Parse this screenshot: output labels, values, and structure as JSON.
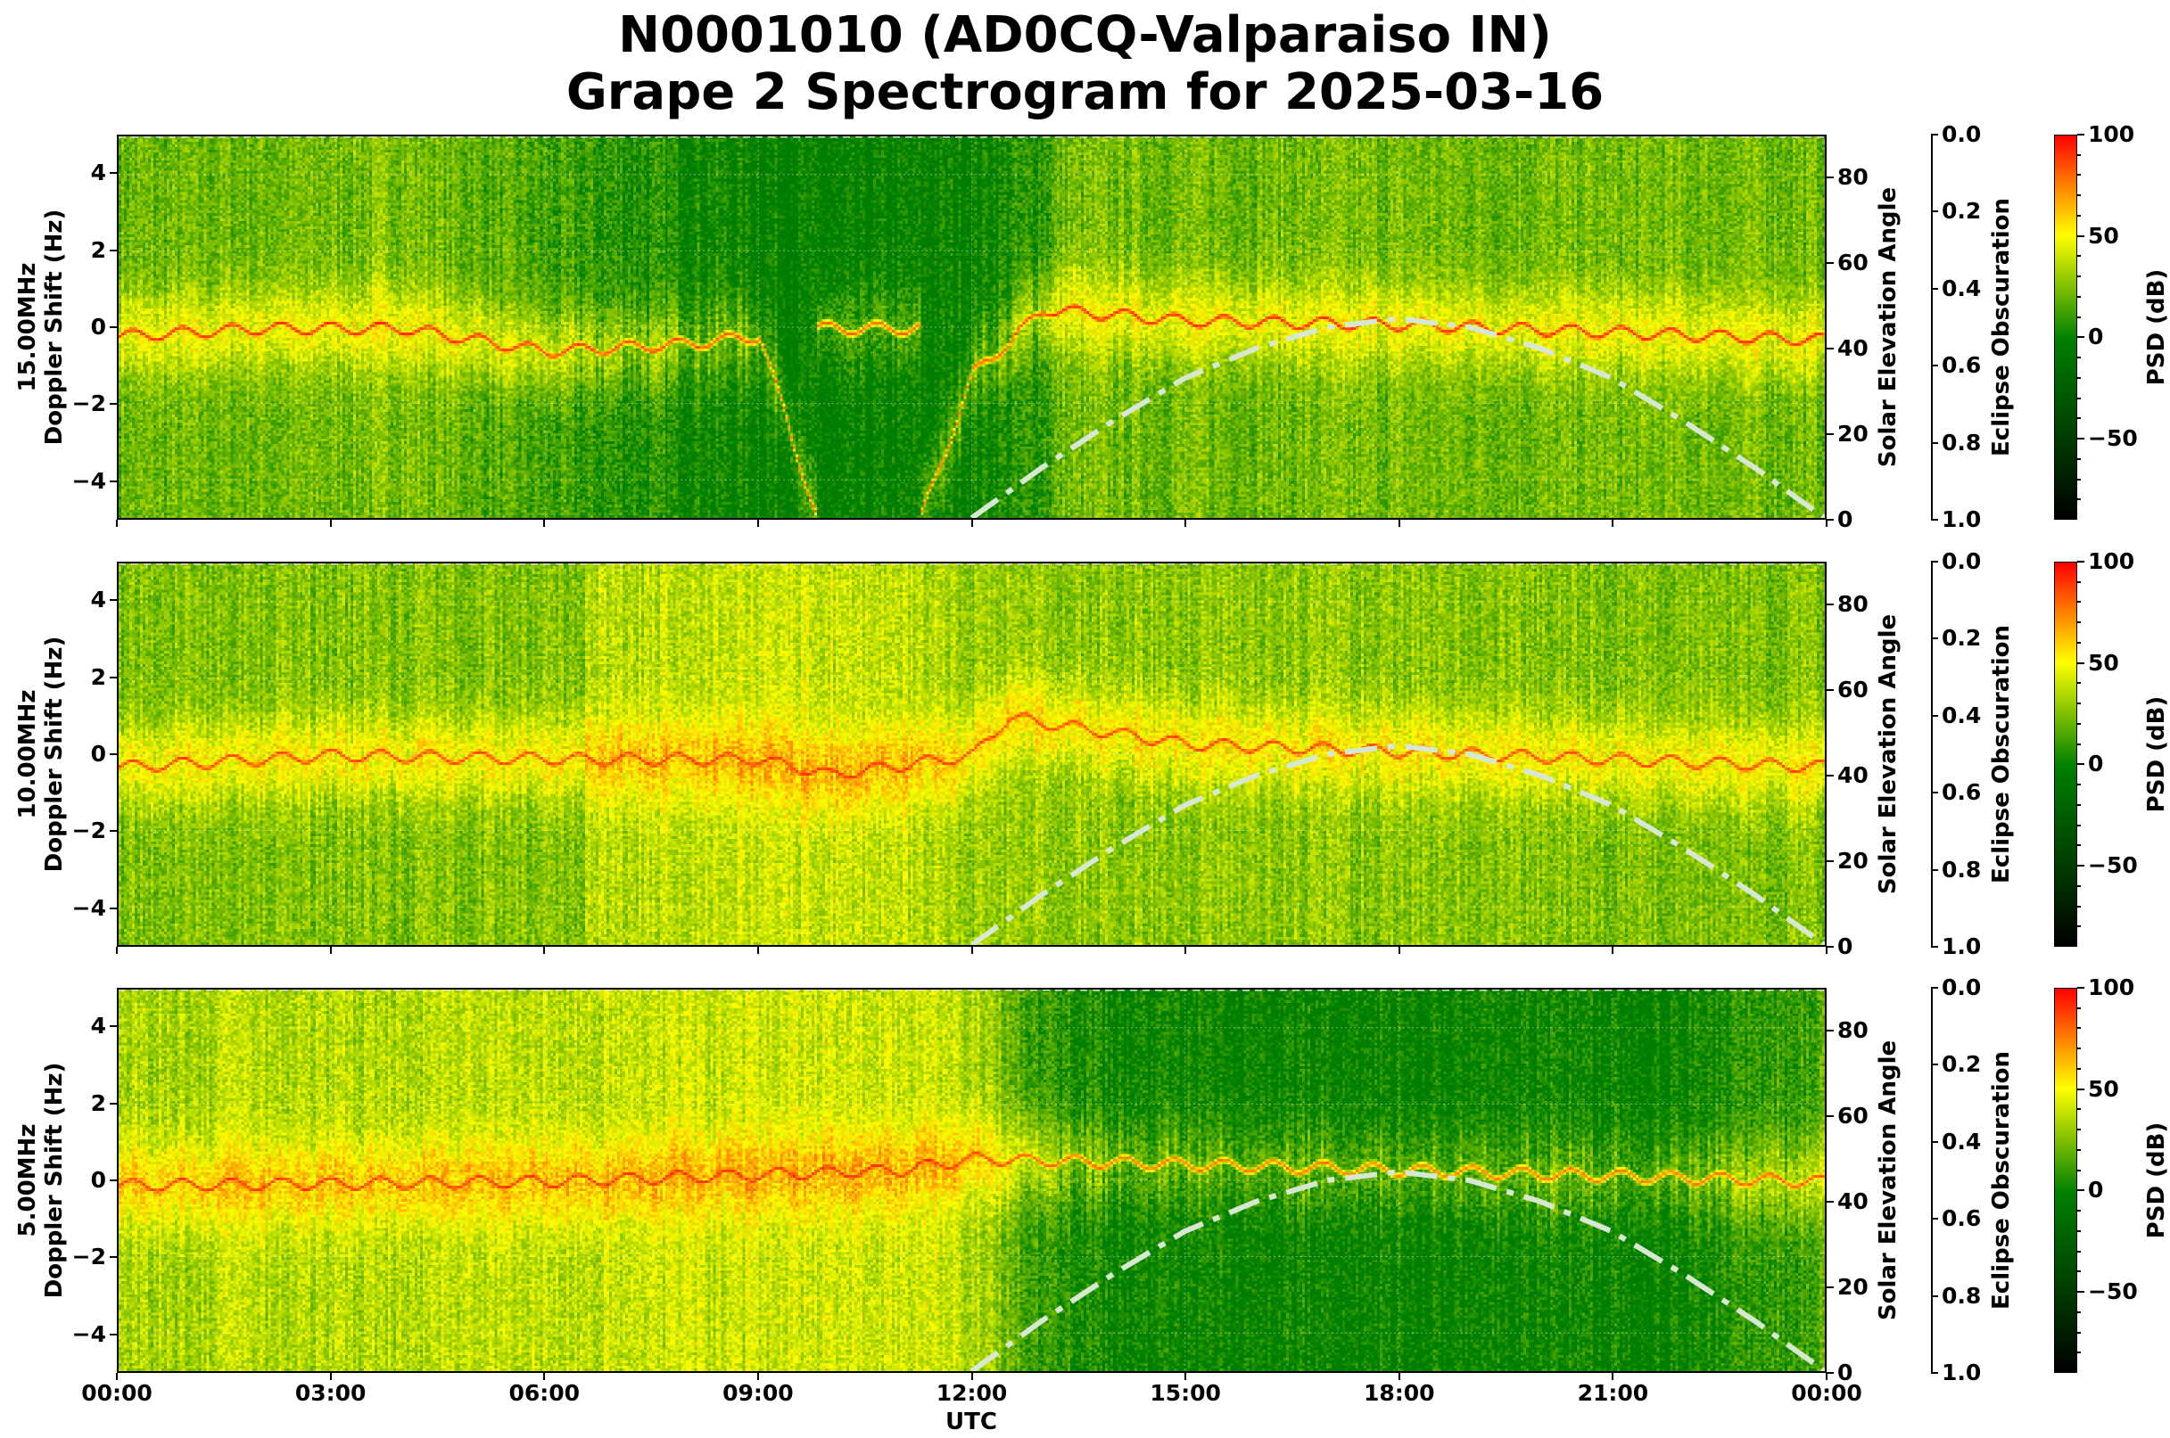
{
  "title_line1": "N0001010 (AD0CQ-Valparaiso IN)",
  "title_line2": "Grape 2 Spectrogram for 2025-03-16",
  "colors": {
    "elevation_curve": "#d6e8d2",
    "colormap": [
      "#000000",
      "#006400",
      "#008000",
      "#ffff00",
      "#ff0000"
    ]
  },
  "chart_data": {
    "type": "heatmap",
    "xlabel": "UTC",
    "x_ticks": [
      "00:00",
      "03:00",
      "06:00",
      "09:00",
      "12:00",
      "15:00",
      "18:00",
      "21:00",
      "00:00"
    ],
    "x_range_hours": [
      0,
      24
    ],
    "ylabel_suffix": "Doppler Shift (Hz)",
    "ylim": [
      -5,
      5
    ],
    "y_ticks": [
      -4,
      -2,
      0,
      2,
      4
    ],
    "right_axis": {
      "label": "Solar Elevation Angle",
      "ylim": [
        0,
        90
      ],
      "ticks": [
        0,
        20,
        40,
        60,
        80
      ]
    },
    "eclipse_axis": {
      "label": "Eclipse Obscuration",
      "ylim": [
        0.0,
        1.0
      ],
      "ticks": [
        "0.0",
        "0.2",
        "0.4",
        "0.6",
        "0.8",
        "1.0"
      ]
    },
    "colorbar": {
      "label": "PSD (dB)",
      "range": [
        -90,
        100
      ],
      "ticks": [
        100,
        50,
        0,
        -50
      ]
    },
    "solar_elevation": {
      "hours": [
        12,
        13,
        14,
        15,
        16,
        17,
        18,
        19,
        20,
        21,
        22,
        23,
        24
      ],
      "degrees": [
        0,
        12,
        23,
        33,
        40,
        45,
        47,
        45,
        40,
        33,
        23,
        12,
        0
      ]
    },
    "panels": [
      {
        "frequency": "15.00MHz",
        "background_db": {
          "hours": [
            0,
            3,
            4,
            6,
            9,
            10,
            12,
            13,
            13.3,
            24
          ],
          "db": [
            20,
            22,
            25,
            12,
            0,
            -5,
            0,
            10,
            22,
            22
          ]
        },
        "carrier_db": 75,
        "carrier_offset_hz": {
          "hours": [
            0,
            2,
            4,
            6,
            8,
            9,
            10.5,
            12,
            13,
            15,
            18,
            21,
            24
          ],
          "hz": [
            -0.2,
            0.0,
            0.0,
            -0.6,
            -0.4,
            -0.2,
            -9,
            -1.2,
            0.5,
            0.2,
            0.1,
            -0.1,
            -0.3
          ]
        }
      },
      {
        "frequency": "10.00MHz",
        "background_db": {
          "hours": [
            0,
            6.5,
            6.6,
            9,
            11,
            12,
            14,
            24
          ],
          "db": [
            25,
            25,
            35,
            40,
            38,
            30,
            28,
            25
          ]
        },
        "carrier_db": 70,
        "carrier_offset_hz": {
          "hours": [
            0,
            3,
            6.5,
            9,
            10,
            12,
            12.5,
            15,
            18,
            21,
            24
          ],
          "hz": [
            -0.3,
            0.0,
            -0.1,
            -0.1,
            -0.5,
            0.0,
            1.0,
            0.3,
            0.1,
            -0.1,
            -0.3
          ]
        }
      },
      {
        "frequency": "5.00MHz",
        "background_db": {
          "hours": [
            0,
            8,
            11,
            12,
            13,
            14,
            22,
            24
          ],
          "db": [
            33,
            38,
            42,
            35,
            10,
            0,
            0,
            15
          ]
        },
        "carrier_db": 70,
        "carrier_offset_hz": {
          "hours": [
            0,
            6,
            11,
            12,
            24
          ],
          "hz": [
            -0.1,
            0.0,
            0.3,
            0.6,
            0.0
          ]
        }
      }
    ]
  }
}
